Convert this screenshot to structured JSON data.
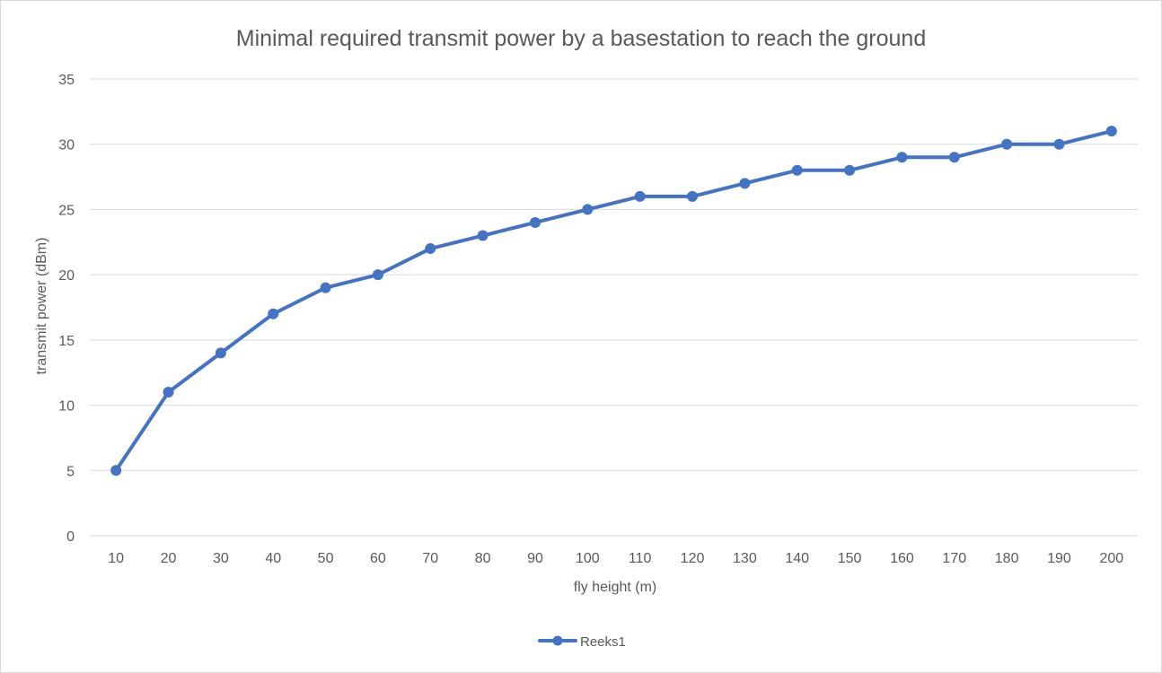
{
  "chart_data": {
    "type": "line",
    "title": "Minimal required transmit power by a basestation to reach the ground",
    "xlabel": "fly height (m)",
    "ylabel": "transmit power (dBm)",
    "categories": [
      "10",
      "20",
      "30",
      "40",
      "50",
      "60",
      "70",
      "80",
      "90",
      "100",
      "110",
      "120",
      "130",
      "140",
      "150",
      "160",
      "170",
      "180",
      "190",
      "200"
    ],
    "series": [
      {
        "name": "Reeks1",
        "color": "#4472c4",
        "values": [
          5,
          11,
          14,
          17,
          19,
          20,
          22,
          23,
          24,
          25,
          26,
          26,
          27,
          28,
          28,
          29,
          29,
          30,
          30,
          31
        ]
      }
    ],
    "ylim": [
      0,
      35
    ],
    "yticks": [
      0,
      5,
      10,
      15,
      20,
      25,
      30,
      35
    ],
    "grid": true,
    "legend_position": "bottom",
    "colors": {
      "grid": "#d9d9d9",
      "text": "#595959"
    }
  }
}
